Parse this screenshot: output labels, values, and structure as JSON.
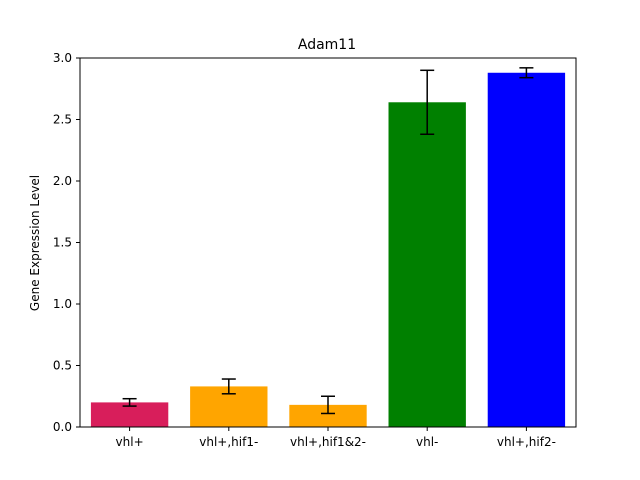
{
  "chart_data": {
    "type": "bar",
    "title": "Adam11",
    "xlabel": "",
    "ylabel": "Gene Expression Level",
    "categories": [
      "vhl+",
      "vhl+,hif1-",
      "vhl+,hif1&2-",
      "vhl-",
      "vhl+,hif2-"
    ],
    "values": [
      0.2,
      0.33,
      0.18,
      2.64,
      2.88
    ],
    "errors": [
      0.03,
      0.06,
      0.07,
      0.26,
      0.04
    ],
    "colors": [
      "#d81e5b",
      "#ffa500",
      "#ffa500",
      "#008000",
      "#0000ff"
    ],
    "ylim": [
      0,
      3.0
    ],
    "yticks": [
      "0.0",
      "0.5",
      "1.0",
      "1.5",
      "2.0",
      "2.5",
      "3.0"
    ],
    "grid": false,
    "legend": null
  }
}
